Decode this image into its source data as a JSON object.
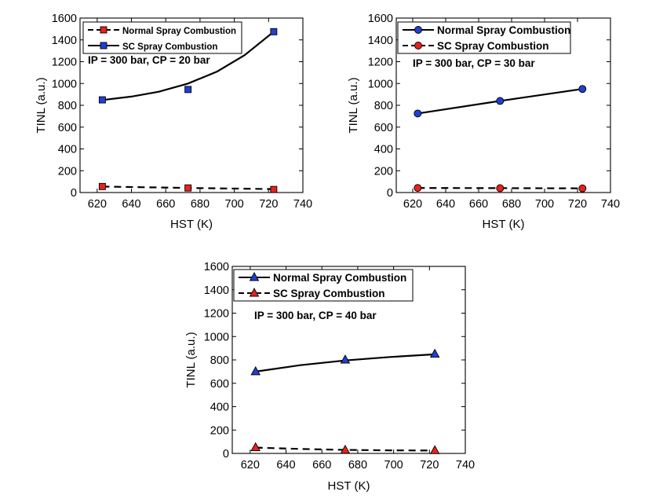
{
  "chart_data": [
    {
      "type": "scatter",
      "annotation": "IP = 300 bar, CP = 20 bar",
      "xlabel": "HST (K)",
      "ylabel": "TINL (a.u.)",
      "xlim": [
        610,
        740
      ],
      "ylim": [
        0,
        1600
      ],
      "xticks": [
        620,
        640,
        660,
        680,
        700,
        720,
        740
      ],
      "yticks": [
        0,
        200,
        400,
        600,
        800,
        1000,
        1200,
        1400,
        1600
      ],
      "legend_position": "top-left",
      "marker": "square",
      "series": [
        {
          "name": "Normal Spray Combustion",
          "color": "#e8211e",
          "line": "dashed",
          "x": [
            623,
            673,
            723
          ],
          "values": [
            55,
            42,
            28
          ],
          "fit": [
            [
              623,
              55
            ],
            [
              673,
              42
            ],
            [
              723,
              32
            ]
          ]
        },
        {
          "name": "SC Spray Combustion",
          "color": "#1f3fd6",
          "line": "solid",
          "x": [
            623,
            673,
            723
          ],
          "values": [
            850,
            945,
            1475
          ],
          "fit": [
            [
              623,
              848
            ],
            [
              640,
              880
            ],
            [
              656,
              925
            ],
            [
              673,
              1000
            ],
            [
              690,
              1110
            ],
            [
              706,
              1260
            ],
            [
              723,
              1475
            ]
          ]
        }
      ]
    },
    {
      "type": "scatter",
      "annotation": "IP = 300 bar, CP = 30 bar",
      "xlabel": "HST (K)",
      "ylabel": "TINL (a.u.)",
      "xlim": [
        610,
        740
      ],
      "ylim": [
        0,
        1600
      ],
      "xticks": [
        620,
        640,
        660,
        680,
        700,
        720,
        740
      ],
      "yticks": [
        0,
        200,
        400,
        600,
        800,
        1000,
        1200,
        1400,
        1600
      ],
      "legend_position": "top-left",
      "marker": "circle",
      "series": [
        {
          "name": "Normal Spray Combustion",
          "color": "#1f3fd6",
          "line": "solid",
          "x": [
            623,
            673,
            723
          ],
          "values": [
            725,
            840,
            950
          ],
          "fit": [
            [
              623,
              725
            ],
            [
              673,
              840
            ],
            [
              723,
              950
            ]
          ]
        },
        {
          "name": "SC Spray Combustion",
          "color": "#e8211e",
          "line": "dashed",
          "x": [
            623,
            673,
            723
          ],
          "values": [
            42,
            40,
            38
          ],
          "fit": [
            [
              623,
              42
            ],
            [
              673,
              40
            ],
            [
              723,
              38
            ]
          ]
        }
      ]
    },
    {
      "type": "scatter",
      "annotation": "IP = 300 bar, CP = 40 bar",
      "xlabel": "HST (K)",
      "ylabel": "TINL (a.u.)",
      "xlim": [
        610,
        740
      ],
      "ylim": [
        0,
        1600
      ],
      "xticks": [
        620,
        640,
        660,
        680,
        700,
        720,
        740
      ],
      "yticks": [
        0,
        200,
        400,
        600,
        800,
        1000,
        1200,
        1400,
        1600
      ],
      "legend_position": "top-left",
      "marker": "triangle",
      "series": [
        {
          "name": "Normal Spray Combustion",
          "color": "#1f3fd6",
          "line": "solid",
          "x": [
            623,
            673,
            723
          ],
          "values": [
            700,
            800,
            850
          ],
          "fit": [
            [
              623,
              700
            ],
            [
              648,
              755
            ],
            [
              673,
              795
            ],
            [
              698,
              825
            ],
            [
              723,
              848
            ]
          ]
        },
        {
          "name": "SC Spray Combustion",
          "color": "#e8211e",
          "line": "dashed",
          "x": [
            623,
            673,
            723
          ],
          "values": [
            50,
            28,
            25
          ],
          "fit": [
            [
              623,
              50
            ],
            [
              648,
              38
            ],
            [
              673,
              30
            ],
            [
              698,
              26
            ],
            [
              723,
              25
            ]
          ]
        }
      ]
    }
  ]
}
